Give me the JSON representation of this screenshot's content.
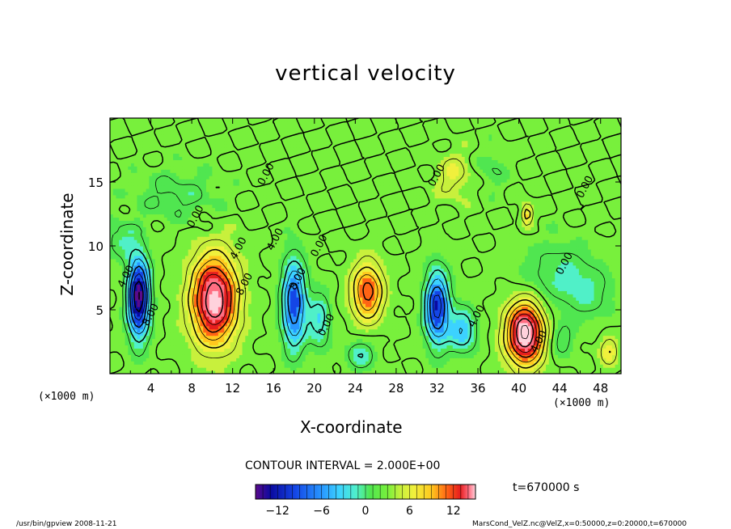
{
  "title": "vertical velocity",
  "colors": {
    "contour_line": "#000000",
    "colormap": [
      "#5a0a8c",
      "#0a0aa0",
      "#1446e6",
      "#2896ff",
      "#3cd2ff",
      "#50f0c8",
      "#50e650",
      "#78f03c",
      "#c8f03c",
      "#f0f03c",
      "#ffc81e",
      "#ff6414",
      "#e61e1e",
      "#ff6e82",
      "#ffd2dc"
    ]
  },
  "footer": {
    "left": "/usr/bin/gpview   2008-11-21",
    "right": "MarsCond_VelZ.nc@VelZ,x=0:50000,z=0:20000,t=670000"
  },
  "legend": {
    "contour_interval": "CONTOUR INTERVAL = 2.000E+00",
    "time_label": "t=670000  s",
    "colorbar_ticks": [
      "−12",
      "−6",
      "0",
      "6",
      "12"
    ]
  },
  "chart_data": {
    "type": "heatmap",
    "title": "vertical velocity",
    "xlabel": "X-coordinate",
    "ylabel": "Z-coordinate",
    "x_units": "(×1000 m)",
    "z_units": "(×1000 m)",
    "xlim": [
      0,
      50
    ],
    "ylim": [
      0,
      20
    ],
    "x_ticks": [
      "4",
      "8",
      "12",
      "16",
      "20",
      "24",
      "28",
      "32",
      "36",
      "40",
      "44",
      "48"
    ],
    "y_ticks": [
      "5",
      "10",
      "15"
    ],
    "color_range": [
      -15,
      15
    ],
    "contour_interval": 2.0,
    "contour_labels": [
      {
        "text": "4.00",
        "x": 1.6,
        "z": 7.6
      },
      {
        "text": "8.00",
        "x": 4.0,
        "z": 4.6
      },
      {
        "text": "0.00",
        "x": 8.4,
        "z": 12.3
      },
      {
        "text": "4.00",
        "x": 12.6,
        "z": 9.8
      },
      {
        "text": "8.00",
        "x": 13.2,
        "z": 7.0
      },
      {
        "text": "4.00",
        "x": 16.2,
        "z": 10.5
      },
      {
        "text": "8.00",
        "x": 18.4,
        "z": 7.4
      },
      {
        "text": "0.00",
        "x": 21.2,
        "z": 3.8
      },
      {
        "text": "0.00",
        "x": 20.5,
        "z": 10.0
      },
      {
        "text": "0.00",
        "x": 15.3,
        "z": 15.6
      },
      {
        "text": "0.00",
        "x": 32.0,
        "z": 15.5
      },
      {
        "text": "4.00",
        "x": 35.9,
        "z": 4.5
      },
      {
        "text": "0.00",
        "x": 44.5,
        "z": 8.6
      },
      {
        "text": "4.00",
        "x": 42.0,
        "z": 2.5
      },
      {
        "text": "0.00",
        "x": 46.5,
        "z": 14.6
      }
    ],
    "features": [
      {
        "x": 2.8,
        "z": 6.0,
        "sx": 1.1,
        "sz": 3.2,
        "value": -14
      },
      {
        "x": 10.2,
        "z": 5.8,
        "sx": 2.2,
        "sz": 3.4,
        "value": 14
      },
      {
        "x": 18.0,
        "z": 5.5,
        "sx": 1.2,
        "sz": 3.5,
        "value": -10
      },
      {
        "x": 20.5,
        "z": 4.2,
        "sx": 1.1,
        "sz": 2.2,
        "value": -5
      },
      {
        "x": 25.2,
        "z": 6.4,
        "sx": 1.5,
        "sz": 2.2,
        "value": 9
      },
      {
        "x": 24.5,
        "z": 1.5,
        "sx": 1.4,
        "sz": 1.2,
        "value": -4
      },
      {
        "x": 32.0,
        "z": 5.2,
        "sx": 1.2,
        "sz": 2.9,
        "value": -11
      },
      {
        "x": 34.5,
        "z": 3.4,
        "sx": 1.4,
        "sz": 1.8,
        "value": -6
      },
      {
        "x": 40.6,
        "z": 3.2,
        "sx": 1.8,
        "sz": 2.4,
        "value": 15
      },
      {
        "x": 44.2,
        "z": 2.6,
        "sx": 1.2,
        "sz": 1.4,
        "value": -3
      },
      {
        "x": 48.8,
        "z": 1.8,
        "sx": 0.9,
        "sz": 1.2,
        "value": 4
      },
      {
        "x": 33.6,
        "z": 15.5,
        "sx": 1.6,
        "sz": 1.8,
        "value": 3
      },
      {
        "x": 37.4,
        "z": 16.0,
        "sx": 1.4,
        "sz": 1.6,
        "value": -2
      },
      {
        "x": 40.8,
        "z": 12.5,
        "sx": 0.6,
        "sz": 0.8,
        "value": 6
      },
      {
        "x": 44.0,
        "z": 7.8,
        "sx": 4.0,
        "sz": 2.6,
        "value": -3
      },
      {
        "x": 47.0,
        "z": 6.0,
        "sx": 2.5,
        "sz": 2.0,
        "value": -2
      },
      {
        "x": 6.5,
        "z": 14.0,
        "sx": 4.0,
        "sz": 2.0,
        "value": -2.5
      },
      {
        "x": 1.0,
        "z": 10.5,
        "sx": 1.5,
        "sz": 1.5,
        "value": -3
      }
    ]
  }
}
